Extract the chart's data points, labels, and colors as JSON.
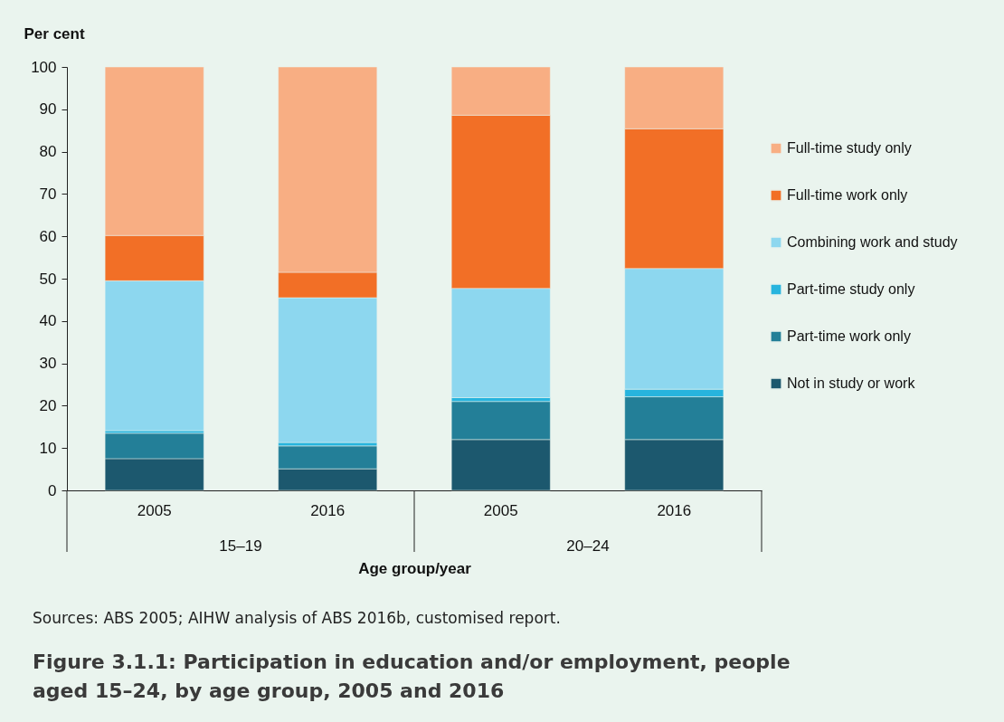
{
  "chart_data": {
    "type": "bar",
    "title": "Figure 3.1.1: Participation in education and/or employment, people aged 15–24, by age group, 2005 and 2016",
    "xlabel": "Age group/year",
    "ylabel": "Per cent",
    "categories": [
      "2005",
      "2016",
      "2005",
      "2016"
    ],
    "stacked": true,
    "ylim": [
      0,
      100
    ],
    "yticks": [
      0,
      10,
      20,
      30,
      40,
      50,
      60,
      70,
      80,
      90,
      100
    ],
    "grid": false,
    "legend": "right",
    "series": [
      {
        "name": "Not in study or work",
        "color": "#1c586e",
        "values": [
          7.5,
          5.1,
          12.0,
          12.0
        ]
      },
      {
        "name": "Part-time work only",
        "color": "#237f98",
        "values": [
          6.0,
          5.4,
          9.0,
          10.1
        ]
      },
      {
        "name": "Part-time study only",
        "color": "#27b4de",
        "values": [
          0.6,
          0.8,
          0.9,
          1.8
        ]
      },
      {
        "name": "Combining work and study",
        "color": "#8dd7ef",
        "values": [
          35.4,
          34.2,
          25.8,
          28.5
        ]
      },
      {
        "name": "Full-time work only",
        "color": "#f26f26",
        "values": [
          10.7,
          6.0,
          40.9,
          33.0
        ]
      },
      {
        "name": "Full-time study only",
        "color": "#f8ae83",
        "values": [
          39.8,
          48.5,
          11.4,
          14.6
        ]
      }
    ],
    "annotations": [
      "15–19",
      "20–24",
      "Sources: ABS 2005; AIHW analysis of ABS 2016b, customised report."
    ]
  }
}
